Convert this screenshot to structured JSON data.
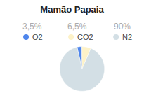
{
  "chart_data": {
    "type": "pie",
    "title": "Mamão Papaia",
    "categories": [
      "O2",
      "CO2",
      "N2"
    ],
    "values": [
      3.5,
      6.5,
      90
    ],
    "value_labels": [
      "3,5%",
      "6,5%",
      "90%"
    ],
    "colors": [
      "#4f86ec",
      "#fdf2c8",
      "#d3dfe5"
    ],
    "legend": "top",
    "data_labels": true
  }
}
